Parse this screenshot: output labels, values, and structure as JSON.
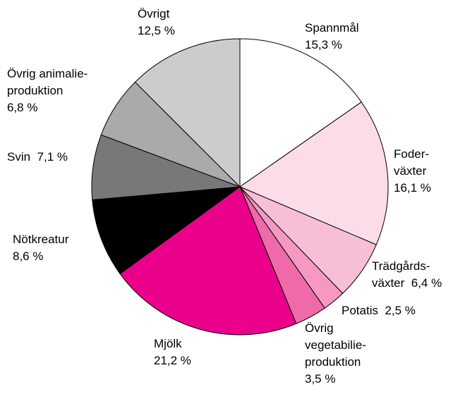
{
  "chart_data": {
    "type": "pie",
    "categories": [
      "Spannmål",
      "Foder-\nväxter",
      "Trädgårds-\nväxter",
      "Potatis",
      "Övrig\nvegetabilie-\nproduktion",
      "Mjölk",
      "Nötkreatur",
      "Svin",
      "Övrig animalie-\nproduktion",
      "Övrigt"
    ],
    "values": [
      15.3,
      16.1,
      6.4,
      2.5,
      3.5,
      21.2,
      8.6,
      7.1,
      6.8,
      12.5
    ],
    "value_labels": [
      "15,3 %",
      "16,1 %",
      "6,4 %",
      "2,5 %",
      "3,5 %",
      "21,2 %",
      "8,6 %",
      "7,1 %",
      "6,8 %",
      "12,5 %"
    ],
    "colors": [
      "#ffffff",
      "#fcdce8",
      "#f7bfd7",
      "#f599c2",
      "#ef6aa8",
      "#eb008b",
      "#000000",
      "#787878",
      "#aaaaaa",
      "#cccccc"
    ]
  }
}
